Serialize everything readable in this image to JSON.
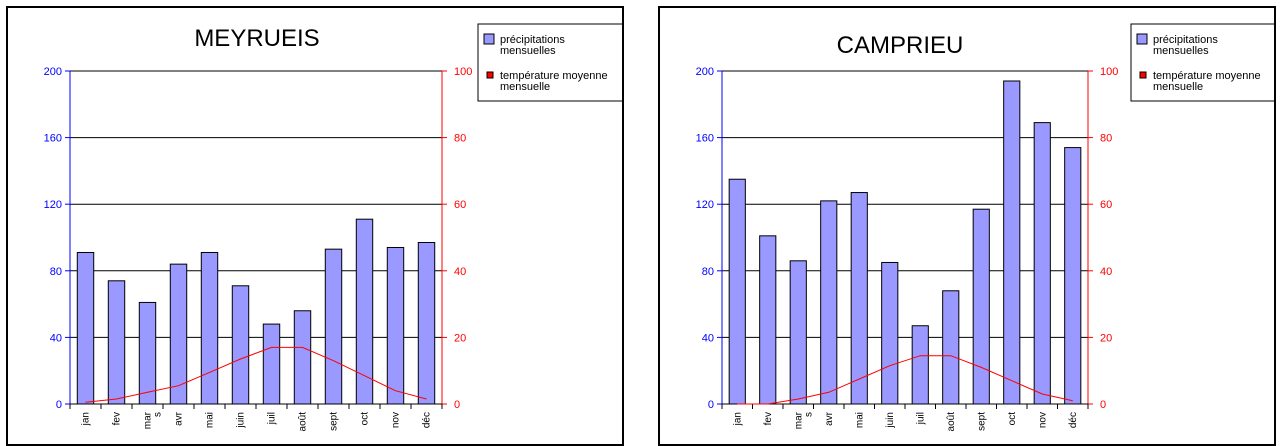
{
  "chart_data": [
    {
      "type": "bar",
      "title": "MEYRUEIS",
      "categories": [
        "jan",
        "fev",
        "mar s",
        "avr",
        "mai",
        "juin",
        "juil",
        "août",
        "sept",
        "oct",
        "nov",
        "déc"
      ],
      "series": [
        {
          "name": "précipitations mensuelles",
          "type": "bar",
          "axis": "left",
          "values": [
            91,
            74,
            61,
            84,
            91,
            71,
            48,
            56,
            93,
            111,
            94,
            97
          ]
        },
        {
          "name": "température moyenne mensuelle",
          "type": "line",
          "axis": "right",
          "values": [
            0.5,
            1.5,
            3.5,
            5.5,
            9.5,
            13.5,
            17,
            17,
            13,
            8.5,
            4,
            1.5
          ]
        }
      ],
      "y_left": {
        "range": [
          0,
          200
        ],
        "ticks": [
          "0",
          "40",
          "80",
          "120",
          "160",
          "200"
        ],
        "color": "#0000ff"
      },
      "y_right": {
        "range": [
          0,
          100
        ],
        "ticks": [
          "0",
          "20",
          "40",
          "60",
          "80",
          "100"
        ],
        "color": "#ff0000"
      },
      "grid": true,
      "legend_position": "top-right",
      "colors": {
        "bar": "#9999ff",
        "line": "#ff0000"
      }
    },
    {
      "type": "bar",
      "title": "CAMPRIEU",
      "categories": [
        "jan",
        "fev",
        "mar s",
        "avr",
        "mai",
        "juin",
        "juil",
        "août",
        "sept",
        "oct",
        "nov",
        "déc"
      ],
      "series": [
        {
          "name": "précipitations mensuelles",
          "type": "bar",
          "axis": "left",
          "values": [
            135,
            101,
            86,
            122,
            127,
            85,
            47,
            68,
            117,
            194,
            169,
            154
          ]
        },
        {
          "name": "température moyenne mensuelle",
          "type": "line",
          "axis": "right",
          "values": [
            -1,
            0,
            1.5,
            3.5,
            7.5,
            11.5,
            14.5,
            14.5,
            11,
            7,
            3,
            1
          ]
        }
      ],
      "y_left": {
        "range": [
          0,
          200
        ],
        "ticks": [
          "0",
          "40",
          "80",
          "120",
          "160",
          "200"
        ],
        "color": "#0000ff"
      },
      "y_right": {
        "range": [
          0,
          100
        ],
        "ticks": [
          "0",
          "20",
          "40",
          "60",
          "80",
          "100"
        ],
        "color": "#ff0000"
      },
      "grid": true,
      "legend_position": "top-right",
      "colors": {
        "bar": "#9999ff",
        "line": "#ff0000"
      }
    }
  ]
}
